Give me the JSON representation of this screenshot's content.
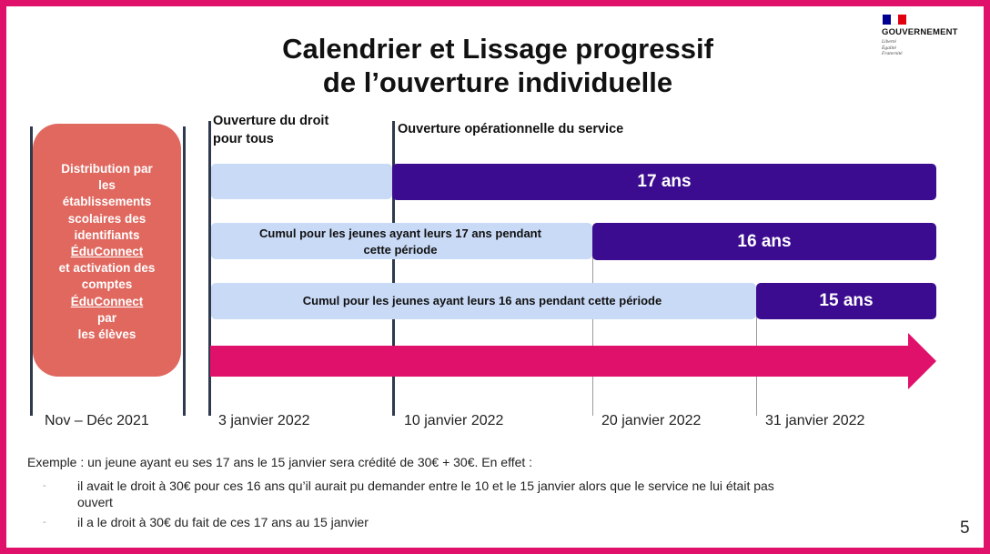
{
  "title": {
    "line1": "Calendrier et Lissage progressif",
    "line2": "de l’ouverture individuelle"
  },
  "government": {
    "name": "GOUVERNEMENT",
    "motto": [
      "Liberté",
      "Égalité",
      "Fraternité"
    ],
    "flag_colors": [
      "#000091",
      "#ffffff",
      "#e1000f"
    ]
  },
  "left_box": {
    "lines": [
      "Distribution par",
      "les",
      "établissements",
      "scolaires des",
      "identifiants"
    ],
    "u1": "ÉduConnect",
    "line6": "et activation des",
    "line7": "comptes",
    "u2": "ÉduConnect",
    "line9": "par",
    "line10": "les élèves"
  },
  "headers": {
    "droit": [
      "Ouverture du droit",
      "pour tous"
    ],
    "operationnelle": "Ouverture opérationnelle du service"
  },
  "rows": [
    {
      "cumul_text": "",
      "age_label": "17 ans"
    },
    {
      "cumul_text": [
        "Cumul pour les jeunes ayant leurs 17 ans pendant",
        "cette période"
      ],
      "age_label": "16 ans"
    },
    {
      "cumul_text": "Cumul pour les jeunes ayant leurs 16 ans pendant cette période",
      "age_label": "15 ans"
    }
  ],
  "dates": [
    "Nov – Déc 2021",
    "3 janvier 2022",
    "10 janvier 2022",
    "20 janvier 2022",
    "31 janvier 2022"
  ],
  "example": {
    "intro": "Exemple : un jeune ayant eu ses 17 ans le 15 janvier sera crédité de 30€ + 30€. En effet :",
    "bullets": [
      [
        "il avait le droit à 30€ pour ces 16 ans qu’il aurait pu demander entre le 10 et le 15 janvier alors que le service ne lui était pas",
        "ouvert"
      ],
      [
        "il a le droit à 30€ du fait de ces 17 ans au 15 janvier"
      ]
    ],
    "bullet_marker": "-"
  },
  "page_number": "5",
  "colors": {
    "frame": "#e0116a",
    "arrow": "#e0116a",
    "dark_bar": "#3b0c8f",
    "light_bar": "#c9daf6",
    "left_box": "#e0685f"
  }
}
